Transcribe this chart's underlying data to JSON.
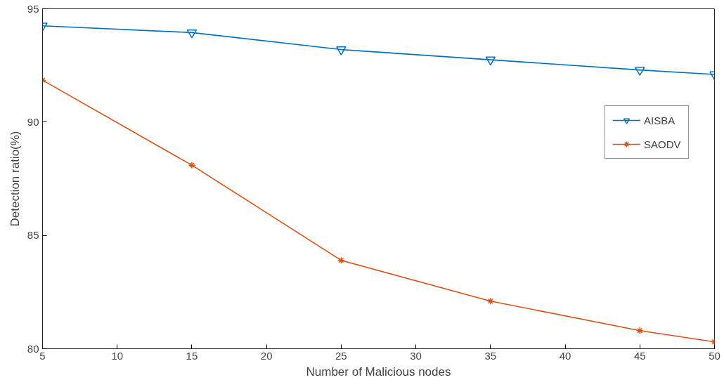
{
  "chart_data": {
    "type": "line",
    "xlabel": "Number of Malicious nodes",
    "ylabel": "Detection ratio(%)",
    "x": [
      5,
      15,
      25,
      35,
      45,
      50
    ],
    "series": [
      {
        "name": "AISBA",
        "color": "#0072bd",
        "marker": "triangle",
        "values": [
          94.25,
          93.95,
          93.2,
          92.75,
          92.3,
          92.1
        ]
      },
      {
        "name": "SAODV",
        "color": "#d95319",
        "marker": "cross",
        "values": [
          91.85,
          88.1,
          83.9,
          82.1,
          80.8,
          80.3
        ]
      }
    ],
    "xlim": [
      5,
      50
    ],
    "xticks": [
      5,
      10,
      15,
      20,
      25,
      30,
      35,
      40,
      45,
      50
    ],
    "ylim": [
      80,
      95
    ],
    "yticks": [
      80,
      85,
      90,
      95
    ],
    "grid": false,
    "legend": "top right",
    "line_style": "solid"
  }
}
